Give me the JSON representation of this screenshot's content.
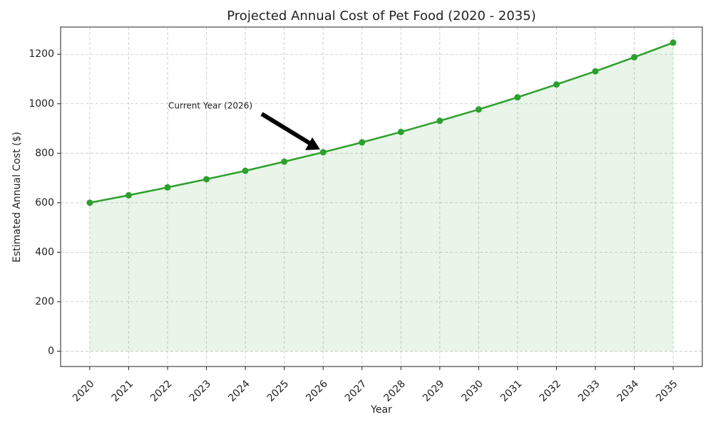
{
  "chart_data": {
    "type": "line",
    "title": "Projected Annual Cost of Pet Food (2020 - 2035)",
    "x_label": "Year",
    "y_label": "Estimated Annual Cost ($)",
    "x": [
      2020,
      2021,
      2022,
      2023,
      2024,
      2025,
      2026,
      2027,
      2028,
      2029,
      2030,
      2031,
      2032,
      2033,
      2034,
      2035
    ],
    "series": [
      {
        "name": "Projected Annual Cost",
        "color": "#2ca02c",
        "values": [
          600,
          630,
          662,
          695,
          729,
          766,
          804,
          844,
          886,
          931,
          977,
          1026,
          1078,
          1131,
          1188,
          1247
        ]
      }
    ],
    "fill_area": true,
    "annotation": "Current Year (2026)",
    "xlim": [
      2019.25,
      2035.75
    ],
    "xticks": [
      2020,
      2021,
      2022,
      2023,
      2024,
      2025,
      2026,
      2027,
      2028,
      2029,
      2030,
      2031,
      2032,
      2033,
      2034,
      2035
    ],
    "ylim": [
      -62,
      1310
    ],
    "yticks": [
      0,
      200,
      400,
      600,
      800,
      1000,
      1200
    ],
    "grid": true
  }
}
